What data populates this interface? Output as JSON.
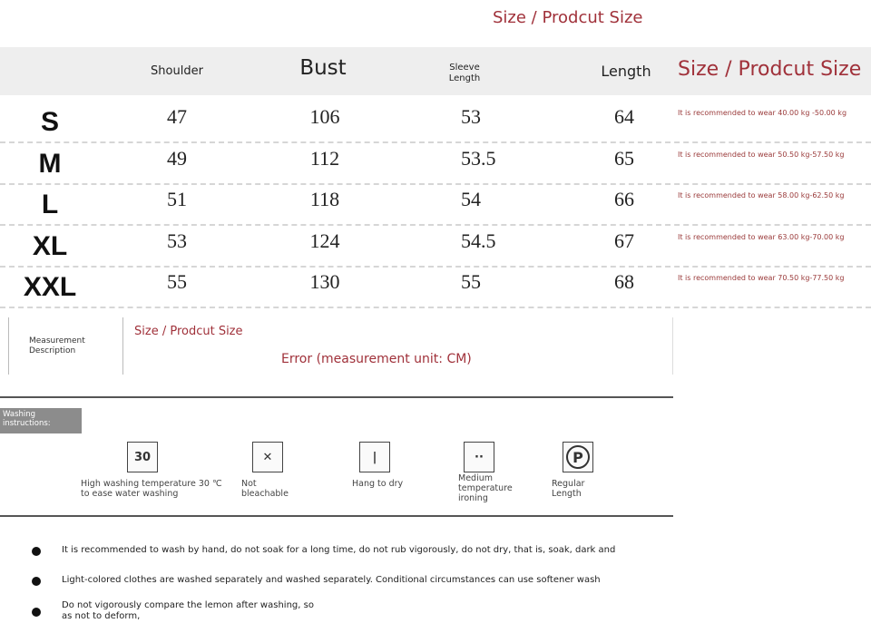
{
  "title": "Size / Prodcut Size",
  "headers": {
    "shoulder": "Shoulder",
    "bust": "Bust",
    "sleeve": "Sleeve Length",
    "length": "Length",
    "notes": "Size / Prodcut Size"
  },
  "rows": [
    {
      "size": "S",
      "shoulder": "47",
      "bust": "106",
      "sleeve": "53",
      "length": "64",
      "note": "It is recommended to wear 40.00 kg -50.00 kg"
    },
    {
      "size": "M",
      "shoulder": "49",
      "bust": "112",
      "sleeve": "53.5",
      "length": "65",
      "note": "It is recommended to wear 50.50 kg-57.50 kg"
    },
    {
      "size": "L",
      "shoulder": "51",
      "bust": "118",
      "sleeve": "54",
      "length": "66",
      "note": "It is recommended to wear 58.00 kg-62.50 kg"
    },
    {
      "size": "XL",
      "shoulder": "53",
      "bust": "124",
      "sleeve": "54.5",
      "length": "67",
      "note": "It is recommended to wear 63.00 kg-70.00 kg"
    },
    {
      "size": "XXL",
      "shoulder": "55",
      "bust": "130",
      "sleeve": "55",
      "length": "68",
      "note": "It is recommended to wear 70.50 kg-77.50 kg"
    }
  ],
  "measurement": {
    "label": "Measurement Description",
    "title": "Size / Prodcut Size",
    "error": "Error (measurement unit: CM)"
  },
  "washing": {
    "label": "Washing instructions:",
    "items": [
      {
        "icon": "wash-30-icon",
        "glyph": "30",
        "label": "High washing temperature 30 ℃ to ease water washing"
      },
      {
        "icon": "no-bleach-icon",
        "glyph": "✕",
        "label": "Not bleachable"
      },
      {
        "icon": "hang-dry-icon",
        "glyph": "|",
        "label": "Hang to dry"
      },
      {
        "icon": "iron-medium-icon",
        "glyph": "··",
        "label": "Medium temperature ironing"
      },
      {
        "icon": "dry-clean-p-icon",
        "glyph": "P",
        "label": "Regular Length"
      }
    ]
  },
  "bullets": [
    "It is recommended to wash by hand, do not soak for a long time, do not rub vigorously, do not dry, that is, soak, dark and",
    "Light-colored clothes are washed separately and washed separately. Conditional circumstances can use softener wash",
    "Do not vigorously compare the lemon after washing, so as not to deform,"
  ],
  "colors": {
    "accent": "#a0313a",
    "header_bg": "#eeeeee",
    "label_bg": "#8c8c8c"
  }
}
